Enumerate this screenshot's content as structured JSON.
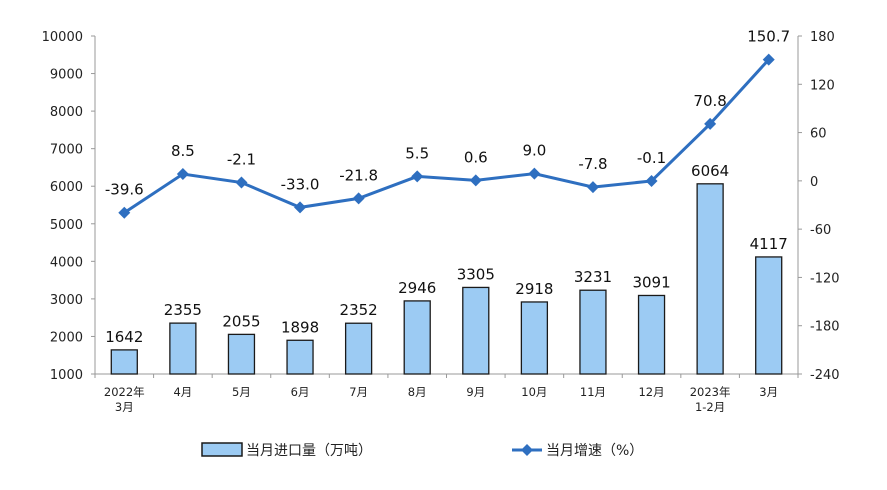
{
  "chart_data": {
    "type": "bar+line",
    "categories": [
      [
        "2022年",
        "3月"
      ],
      [
        "4月"
      ],
      [
        "5月"
      ],
      [
        "6月"
      ],
      [
        "7月"
      ],
      [
        "8月"
      ],
      [
        "9月"
      ],
      [
        "10月"
      ],
      [
        "11月"
      ],
      [
        "12月"
      ],
      [
        "2023年",
        "1-2月"
      ],
      [
        "3月"
      ]
    ],
    "series": [
      {
        "name": "当月进口量（万吨）",
        "type": "bar",
        "axis": "left",
        "values": [
          1642,
          2355,
          2055,
          1898,
          2352,
          2946,
          3305,
          2918,
          3231,
          3091,
          6064,
          4117
        ],
        "color": "#9ccbf3"
      },
      {
        "name": "当月增速（%）",
        "type": "line",
        "axis": "right",
        "values": [
          -39.6,
          8.5,
          -2.1,
          -33.0,
          -21.8,
          5.5,
          0.6,
          9.0,
          -7.8,
          -0.1,
          70.8,
          150.7
        ],
        "color": "#2e6fc0"
      }
    ],
    "left_axis": {
      "ylim": [
        1000,
        10000
      ],
      "ticks": [
        1000,
        2000,
        3000,
        4000,
        5000,
        6000,
        7000,
        8000,
        9000,
        10000
      ]
    },
    "right_axis": {
      "ylim": [
        -240,
        180
      ],
      "ticks": [
        -240,
        -180,
        -120,
        -60,
        0,
        60,
        120,
        180
      ]
    },
    "legend_placement": "bottom-center",
    "grid": false
  }
}
